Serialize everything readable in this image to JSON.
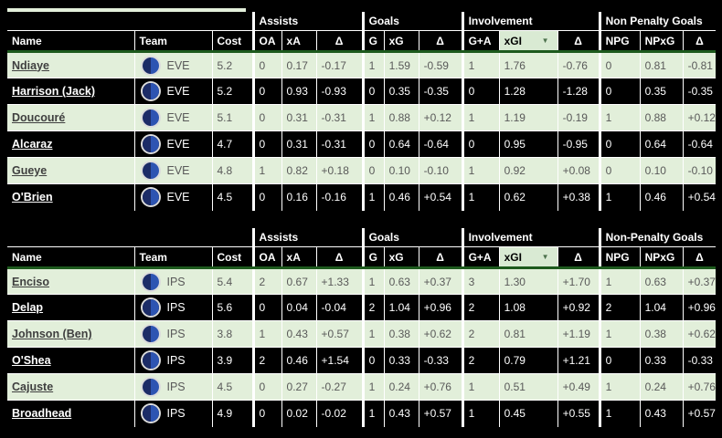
{
  "columns": [
    "Name",
    "Team",
    "Cost",
    "OA",
    "xA",
    "Δ",
    "G",
    "xG",
    "Δ",
    "G+A",
    "xGI",
    "Δ",
    "NPG",
    "NPxG",
    "Δ"
  ],
  "sorted_column_label": "xGI",
  "icons": {
    "sort_dropdown_icon": "▼",
    "club_badge_icon": "two-tone-blue-circle"
  },
  "colors": {
    "row_green": "#e2efda",
    "row_black": "#000000",
    "header_bg": "#000000",
    "sorted_header_bg": "#d9ead3",
    "header_separator_green": "#1d5a1d",
    "body_text": "#595959",
    "arrow": "#4d724d",
    "badge_left": "#1c2c67",
    "badge_right": "#2d54b2"
  },
  "tables": [
    {
      "id": "eve",
      "group_headers": [
        "",
        "Assists",
        "Goals",
        "Involvement",
        "Non Penalty Goals"
      ],
      "players": [
        {
          "name": "Ndiaye",
          "team": "EVE",
          "cost": "5.2",
          "stats": [
            "0",
            "0.17",
            "-0.17",
            "1",
            "1.59",
            "-0.59",
            "1",
            "1.76",
            "-0.76",
            "0",
            "0.81",
            "-0.81"
          ]
        },
        {
          "name": "Harrison (Jack)",
          "team": "EVE",
          "cost": "5.2",
          "stats": [
            "0",
            "0.93",
            "-0.93",
            "0",
            "0.35",
            "-0.35",
            "0",
            "1.28",
            "-1.28",
            "0",
            "0.35",
            "-0.35"
          ]
        },
        {
          "name": "Doucouré",
          "team": "EVE",
          "cost": "5.1",
          "stats": [
            "0",
            "0.31",
            "-0.31",
            "1",
            "0.88",
            "+0.12",
            "1",
            "1.19",
            "-0.19",
            "1",
            "0.88",
            "+0.12"
          ]
        },
        {
          "name": "Alcaraz",
          "team": "EVE",
          "cost": "4.7",
          "stats": [
            "0",
            "0.31",
            "-0.31",
            "0",
            "0.64",
            "-0.64",
            "0",
            "0.95",
            "-0.95",
            "0",
            "0.64",
            "-0.64"
          ]
        },
        {
          "name": "Gueye",
          "team": "EVE",
          "cost": "4.8",
          "stats": [
            "1",
            "0.82",
            "+0.18",
            "0",
            "0.10",
            "-0.10",
            "1",
            "0.92",
            "+0.08",
            "0",
            "0.10",
            "-0.10"
          ]
        },
        {
          "name": "O'Brien",
          "team": "EVE",
          "cost": "4.5",
          "stats": [
            "0",
            "0.16",
            "-0.16",
            "1",
            "0.46",
            "+0.54",
            "1",
            "0.62",
            "+0.38",
            "1",
            "0.46",
            "+0.54"
          ]
        }
      ]
    },
    {
      "id": "ips",
      "group_headers": [
        "",
        "Assists",
        "Goals",
        "Involvement",
        "Non-Penalty Goals"
      ],
      "players": [
        {
          "name": "Enciso",
          "team": "IPS",
          "cost": "5.4",
          "stats": [
            "2",
            "0.67",
            "+1.33",
            "1",
            "0.63",
            "+0.37",
            "3",
            "1.30",
            "+1.70",
            "1",
            "0.63",
            "+0.37"
          ]
        },
        {
          "name": "Delap",
          "team": "IPS",
          "cost": "5.6",
          "stats": [
            "0",
            "0.04",
            "-0.04",
            "2",
            "1.04",
            "+0.96",
            "2",
            "1.08",
            "+0.92",
            "2",
            "1.04",
            "+0.96"
          ]
        },
        {
          "name": "Johnson (Ben)",
          "team": "IPS",
          "cost": "3.8",
          "stats": [
            "1",
            "0.43",
            "+0.57",
            "1",
            "0.38",
            "+0.62",
            "2",
            "0.81",
            "+1.19",
            "1",
            "0.38",
            "+0.62"
          ]
        },
        {
          "name": "O'Shea",
          "team": "IPS",
          "cost": "3.9",
          "stats": [
            "2",
            "0.46",
            "+1.54",
            "0",
            "0.33",
            "-0.33",
            "2",
            "0.79",
            "+1.21",
            "0",
            "0.33",
            "-0.33"
          ]
        },
        {
          "name": "Cajuste",
          "team": "IPS",
          "cost": "4.5",
          "stats": [
            "0",
            "0.27",
            "-0.27",
            "1",
            "0.24",
            "+0.76",
            "1",
            "0.51",
            "+0.49",
            "1",
            "0.24",
            "+0.76"
          ]
        },
        {
          "name": "Broadhead",
          "team": "IPS",
          "cost": "4.9",
          "stats": [
            "0",
            "0.02",
            "-0.02",
            "1",
            "0.43",
            "+0.57",
            "1",
            "0.45",
            "+0.55",
            "1",
            "0.43",
            "+0.57"
          ]
        }
      ]
    }
  ]
}
